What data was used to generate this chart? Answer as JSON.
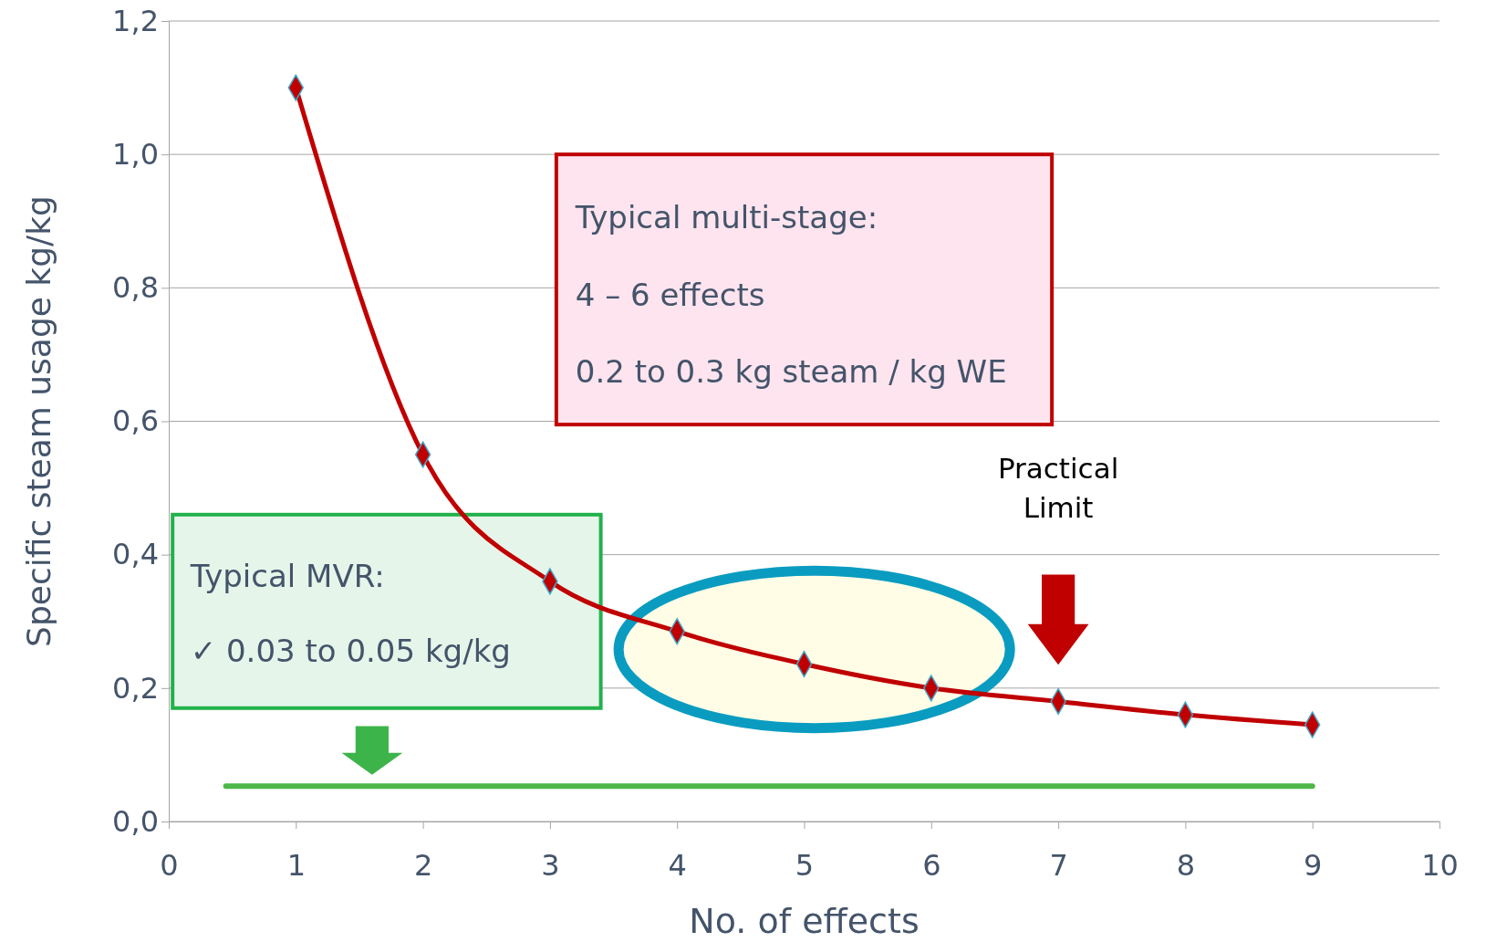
{
  "chart_data": {
    "type": "line",
    "xlabel": "No. of effects",
    "ylabel": "Specific steam usage kg/kg",
    "x": [
      1,
      2,
      3,
      4,
      5,
      6,
      7,
      8,
      9
    ],
    "series": [
      {
        "color": "#c00000",
        "values": [
          1.1,
          0.55,
          0.36,
          0.285,
          0.236,
          0.2,
          0.18,
          0.16,
          0.145
        ],
        "marker": "diamond"
      },
      {
        "type": "line",
        "color": "#4db848",
        "x": [
          0.45,
          9
        ],
        "values": [
          0.053,
          0.053
        ],
        "marker": "none"
      }
    ],
    "xlim": [
      0,
      10
    ],
    "xticks": [
      0,
      1,
      2,
      3,
      4,
      5,
      6,
      7,
      8,
      9,
      10
    ],
    "ylim": [
      0,
      1.2
    ],
    "yticks": [
      {
        "value": 0,
        "label": "0,0"
      },
      {
        "value": 0.2,
        "label": "0,2"
      },
      {
        "value": 0.4,
        "label": "0,4"
      },
      {
        "value": 0.6,
        "label": "0,6"
      },
      {
        "value": 0.8,
        "label": "0,8"
      },
      {
        "value": 1,
        "label": "1,0"
      },
      {
        "value": 1.2,
        "label": "1,2"
      }
    ],
    "grid": "y",
    "annotations": [
      "Typical multi-stage:",
      "4 – 6 effects",
      "0.2 to 0.3 kg steam / kg WE",
      "Typical MVR:",
      "✓  0.03 to 0.05 kg/kg",
      "Practical Limit"
    ]
  }
}
